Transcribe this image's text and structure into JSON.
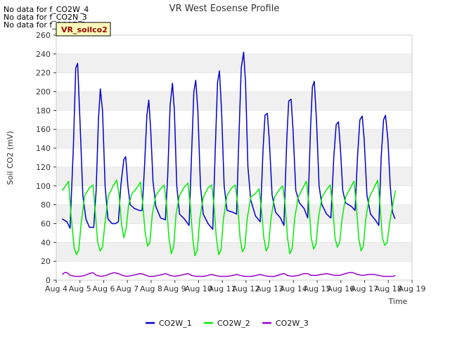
{
  "no_data_messages": [
    "No data for f_CO2W_4",
    "No data for f_CO2N_3",
    "No data for f_CO2E_3"
  ],
  "site_badge": "VR_soilco2",
  "colors": {
    "CO2W_1": "#0000cc",
    "CO2W_2": "#00ee00",
    "CO2W_3": "#9900cc",
    "band": "#f0f0f0",
    "grid": "#dddddd",
    "badge_bg": "#ffffc0",
    "badge_text": "#990000"
  },
  "chart_data": {
    "type": "line",
    "title": "VR West Eosense Profile",
    "xlabel": "Time",
    "ylabel": "Soil CO2 (mV)",
    "xlim": [
      4,
      19
    ],
    "ylim": [
      0,
      260
    ],
    "x_ticks": [
      4,
      5,
      6,
      7,
      8,
      9,
      10,
      11,
      12,
      13,
      14,
      15,
      16,
      17,
      18,
      19
    ],
    "x_tick_labels": [
      "Aug 4",
      "Aug 5",
      "Aug 6",
      "Aug 7",
      "Aug 8",
      "Aug 9",
      "Aug 10",
      "Aug 11",
      "Aug 12",
      "Aug 13",
      "Aug 14",
      "Aug 15",
      "Aug 16",
      "Aug 17",
      "Aug 18",
      "Aug 19"
    ],
    "y_ticks": [
      0,
      20,
      40,
      60,
      80,
      100,
      120,
      140,
      160,
      180,
      200,
      220,
      240,
      260
    ],
    "legend_position": "bottom-center",
    "series": [
      {
        "name": "CO2W_1",
        "points": [
          [
            4.25,
            65
          ],
          [
            4.45,
            62
          ],
          [
            4.58,
            55
          ],
          [
            4.72,
            140
          ],
          [
            4.82,
            225
          ],
          [
            4.9,
            230
          ],
          [
            5.0,
            170
          ],
          [
            5.12,
            90
          ],
          [
            5.25,
            65
          ],
          [
            5.4,
            56
          ],
          [
            5.58,
            56
          ],
          [
            5.68,
            95
          ],
          [
            5.78,
            170
          ],
          [
            5.86,
            203
          ],
          [
            5.95,
            180
          ],
          [
            6.06,
            100
          ],
          [
            6.18,
            65
          ],
          [
            6.35,
            60
          ],
          [
            6.5,
            60
          ],
          [
            6.62,
            62
          ],
          [
            6.72,
            100
          ],
          [
            6.85,
            128
          ],
          [
            6.93,
            131
          ],
          [
            7.02,
            100
          ],
          [
            7.12,
            80
          ],
          [
            7.3,
            76
          ],
          [
            7.5,
            74
          ],
          [
            7.62,
            74
          ],
          [
            7.72,
            120
          ],
          [
            7.82,
            175
          ],
          [
            7.9,
            191
          ],
          [
            7.98,
            160
          ],
          [
            8.08,
            105
          ],
          [
            8.2,
            78
          ],
          [
            8.4,
            66
          ],
          [
            8.6,
            64
          ],
          [
            8.7,
            110
          ],
          [
            8.8,
            185
          ],
          [
            8.9,
            209
          ],
          [
            8.98,
            180
          ],
          [
            9.08,
            100
          ],
          [
            9.2,
            70
          ],
          [
            9.4,
            65
          ],
          [
            9.6,
            58
          ],
          [
            9.7,
            130
          ],
          [
            9.8,
            200
          ],
          [
            9.88,
            212
          ],
          [
            9.97,
            180
          ],
          [
            10.08,
            100
          ],
          [
            10.2,
            70
          ],
          [
            10.4,
            60
          ],
          [
            10.6,
            54
          ],
          [
            10.7,
            135
          ],
          [
            10.8,
            210
          ],
          [
            10.88,
            222
          ],
          [
            10.97,
            180
          ],
          [
            11.08,
            100
          ],
          [
            11.2,
            74
          ],
          [
            11.45,
            72
          ],
          [
            11.6,
            70
          ],
          [
            11.7,
            150
          ],
          [
            11.8,
            225
          ],
          [
            11.9,
            242
          ],
          [
            11.98,
            210
          ],
          [
            12.08,
            120
          ],
          [
            12.2,
            85
          ],
          [
            12.4,
            68
          ],
          [
            12.6,
            62
          ],
          [
            12.72,
            140
          ],
          [
            12.8,
            175
          ],
          [
            12.9,
            177
          ],
          [
            12.98,
            150
          ],
          [
            13.1,
            90
          ],
          [
            13.25,
            72
          ],
          [
            13.45,
            66
          ],
          [
            13.6,
            58
          ],
          [
            13.72,
            150
          ],
          [
            13.8,
            190
          ],
          [
            13.9,
            192
          ],
          [
            13.98,
            160
          ],
          [
            14.1,
            95
          ],
          [
            14.25,
            82
          ],
          [
            14.45,
            76
          ],
          [
            14.6,
            66
          ],
          [
            14.72,
            160
          ],
          [
            14.8,
            205
          ],
          [
            14.88,
            211
          ],
          [
            14.97,
            170
          ],
          [
            15.08,
            100
          ],
          [
            15.2,
            80
          ],
          [
            15.4,
            70
          ],
          [
            15.58,
            66
          ],
          [
            15.7,
            130
          ],
          [
            15.8,
            165
          ],
          [
            15.9,
            168
          ],
          [
            15.98,
            140
          ],
          [
            16.08,
            95
          ],
          [
            16.2,
            82
          ],
          [
            16.45,
            78
          ],
          [
            16.6,
            74
          ],
          [
            16.7,
            130
          ],
          [
            16.8,
            170
          ],
          [
            16.9,
            174
          ],
          [
            16.98,
            150
          ],
          [
            17.1,
            90
          ],
          [
            17.25,
            70
          ],
          [
            17.45,
            64
          ],
          [
            17.6,
            58
          ],
          [
            17.7,
            130
          ],
          [
            17.8,
            170
          ],
          [
            17.88,
            175
          ],
          [
            17.98,
            150
          ],
          [
            18.08,
            100
          ],
          [
            18.18,
            72
          ],
          [
            18.28,
            65
          ]
        ]
      },
      {
        "name": "CO2W_2",
        "points": [
          [
            4.25,
            95
          ],
          [
            4.45,
            102
          ],
          [
            4.52,
            105
          ],
          [
            4.62,
            70
          ],
          [
            4.75,
            35
          ],
          [
            4.85,
            27
          ],
          [
            4.95,
            32
          ],
          [
            5.05,
            60
          ],
          [
            5.2,
            90
          ],
          [
            5.4,
            98
          ],
          [
            5.55,
            101
          ],
          [
            5.65,
            70
          ],
          [
            5.75,
            40
          ],
          [
            5.85,
            31
          ],
          [
            5.95,
            35
          ],
          [
            6.05,
            60
          ],
          [
            6.2,
            90
          ],
          [
            6.4,
            100
          ],
          [
            6.55,
            106
          ],
          [
            6.65,
            90
          ],
          [
            6.75,
            60
          ],
          [
            6.85,
            45
          ],
          [
            6.95,
            55
          ],
          [
            7.05,
            80
          ],
          [
            7.2,
            92
          ],
          [
            7.4,
            98
          ],
          [
            7.55,
            104
          ],
          [
            7.65,
            80
          ],
          [
            7.75,
            50
          ],
          [
            7.85,
            36
          ],
          [
            7.95,
            40
          ],
          [
            8.05,
            70
          ],
          [
            8.2,
            90
          ],
          [
            8.4,
            97
          ],
          [
            8.55,
            101
          ],
          [
            8.65,
            80
          ],
          [
            8.75,
            45
          ],
          [
            8.85,
            28
          ],
          [
            8.95,
            35
          ],
          [
            9.05,
            70
          ],
          [
            9.2,
            90
          ],
          [
            9.4,
            99
          ],
          [
            9.55,
            103
          ],
          [
            9.65,
            80
          ],
          [
            9.75,
            45
          ],
          [
            9.85,
            26
          ],
          [
            9.95,
            32
          ],
          [
            10.05,
            65
          ],
          [
            10.2,
            88
          ],
          [
            10.4,
            98
          ],
          [
            10.55,
            101
          ],
          [
            10.65,
            80
          ],
          [
            10.75,
            45
          ],
          [
            10.85,
            27
          ],
          [
            10.95,
            32
          ],
          [
            11.05,
            65
          ],
          [
            11.2,
            90
          ],
          [
            11.4,
            98
          ],
          [
            11.55,
            101
          ],
          [
            11.65,
            80
          ],
          [
            11.75,
            45
          ],
          [
            11.85,
            30
          ],
          [
            11.95,
            35
          ],
          [
            12.05,
            65
          ],
          [
            12.2,
            88
          ],
          [
            12.4,
            92
          ],
          [
            12.55,
            97
          ],
          [
            12.65,
            75
          ],
          [
            12.75,
            45
          ],
          [
            12.85,
            31
          ],
          [
            12.95,
            36
          ],
          [
            13.05,
            65
          ],
          [
            13.2,
            88
          ],
          [
            13.4,
            96
          ],
          [
            13.55,
            100
          ],
          [
            13.65,
            80
          ],
          [
            13.75,
            45
          ],
          [
            13.85,
            28
          ],
          [
            13.95,
            34
          ],
          [
            14.05,
            65
          ],
          [
            14.2,
            88
          ],
          [
            14.4,
            98
          ],
          [
            14.55,
            105
          ],
          [
            14.65,
            80
          ],
          [
            14.75,
            45
          ],
          [
            14.85,
            33
          ],
          [
            14.95,
            38
          ],
          [
            15.05,
            65
          ],
          [
            15.2,
            88
          ],
          [
            15.4,
            96
          ],
          [
            15.55,
            101
          ],
          [
            15.65,
            80
          ],
          [
            15.75,
            45
          ],
          [
            15.85,
            35
          ],
          [
            15.95,
            40
          ],
          [
            16.05,
            65
          ],
          [
            16.2,
            88
          ],
          [
            16.4,
            98
          ],
          [
            16.55,
            105
          ],
          [
            16.65,
            80
          ],
          [
            16.75,
            45
          ],
          [
            16.85,
            31
          ],
          [
            16.95,
            36
          ],
          [
            17.05,
            65
          ],
          [
            17.2,
            88
          ],
          [
            17.4,
            98
          ],
          [
            17.55,
            106
          ],
          [
            17.65,
            80
          ],
          [
            17.75,
            45
          ],
          [
            17.85,
            37
          ],
          [
            17.95,
            40
          ],
          [
            18.05,
            60
          ],
          [
            18.2,
            82
          ],
          [
            18.3,
            95
          ]
        ]
      },
      {
        "name": "CO2W_3",
        "points": [
          [
            4.25,
            6
          ],
          [
            4.35,
            8
          ],
          [
            4.45,
            8
          ],
          [
            4.6,
            5
          ],
          [
            4.8,
            4
          ],
          [
            5.0,
            4
          ],
          [
            5.2,
            5
          ],
          [
            5.4,
            7
          ],
          [
            5.55,
            8
          ],
          [
            5.7,
            5
          ],
          [
            5.9,
            4
          ],
          [
            6.1,
            5
          ],
          [
            6.3,
            7
          ],
          [
            6.45,
            8
          ],
          [
            6.6,
            7
          ],
          [
            6.8,
            5
          ],
          [
            7.0,
            4
          ],
          [
            7.2,
            5
          ],
          [
            7.4,
            6
          ],
          [
            7.55,
            7
          ],
          [
            7.7,
            6
          ],
          [
            7.9,
            4
          ],
          [
            8.1,
            4
          ],
          [
            8.3,
            5
          ],
          [
            8.5,
            6
          ],
          [
            8.6,
            7
          ],
          [
            8.8,
            5
          ],
          [
            9.0,
            4
          ],
          [
            9.2,
            5
          ],
          [
            9.4,
            6
          ],
          [
            9.55,
            7
          ],
          [
            9.7,
            5
          ],
          [
            9.9,
            4
          ],
          [
            10.2,
            4
          ],
          [
            10.4,
            5
          ],
          [
            10.55,
            6
          ],
          [
            10.7,
            5
          ],
          [
            10.9,
            4
          ],
          [
            11.2,
            4
          ],
          [
            11.45,
            5
          ],
          [
            11.6,
            6
          ],
          [
            11.75,
            5
          ],
          [
            11.95,
            4
          ],
          [
            12.2,
            4
          ],
          [
            12.45,
            5
          ],
          [
            12.6,
            6
          ],
          [
            12.75,
            5
          ],
          [
            12.95,
            4
          ],
          [
            13.2,
            4
          ],
          [
            13.45,
            6
          ],
          [
            13.6,
            7
          ],
          [
            13.75,
            5
          ],
          [
            13.95,
            4
          ],
          [
            14.2,
            5
          ],
          [
            14.45,
            7
          ],
          [
            14.6,
            7
          ],
          [
            14.75,
            5
          ],
          [
            14.95,
            5
          ],
          [
            15.2,
            6
          ],
          [
            15.4,
            7
          ],
          [
            15.55,
            6
          ],
          [
            15.75,
            5
          ],
          [
            15.95,
            5
          ],
          [
            16.2,
            7
          ],
          [
            16.35,
            8
          ],
          [
            16.5,
            8
          ],
          [
            16.7,
            6
          ],
          [
            16.9,
            5
          ],
          [
            17.2,
            6
          ],
          [
            17.4,
            6
          ],
          [
            17.6,
            5
          ],
          [
            17.8,
            4
          ],
          [
            18.0,
            4
          ],
          [
            18.2,
            4
          ],
          [
            18.3,
            5
          ]
        ]
      }
    ]
  }
}
